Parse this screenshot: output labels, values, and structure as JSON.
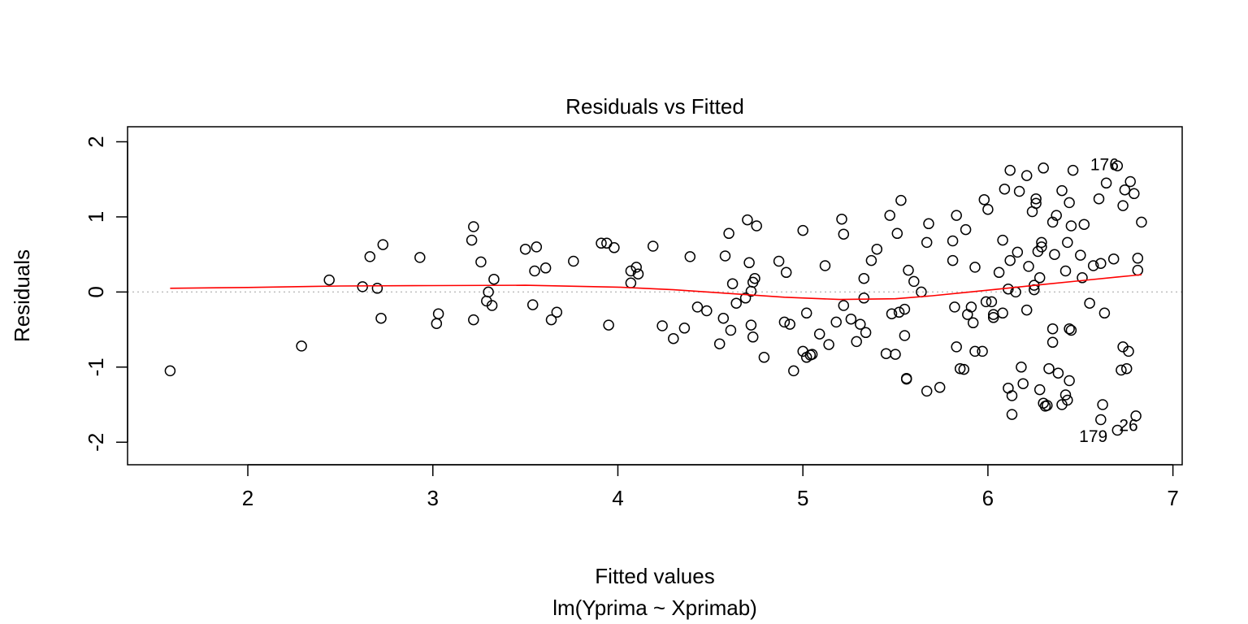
{
  "chart_data": {
    "type": "scatter",
    "title": "Residuals vs Fitted",
    "xlabel": "Fitted values",
    "subtitle": "lm(Yprima ~ Xprimab)",
    "ylabel": "Residuals",
    "xlim": [
      1.35,
      7.05
    ],
    "ylim": [
      -2.3,
      2.2
    ],
    "xticks": [
      2,
      3,
      4,
      5,
      6,
      7
    ],
    "yticks": [
      -2,
      -1,
      0,
      1,
      2
    ],
    "xtick_labels": [
      "2",
      "3",
      "4",
      "5",
      "6",
      "7"
    ],
    "ytick_labels": [
      "-2",
      "-1",
      "0",
      "1",
      "2"
    ],
    "grid": false,
    "legend": "none",
    "colors": {
      "points": "#000000",
      "smoother": "#ff0000",
      "reference_line": "#bebebe",
      "frame": "#000000"
    },
    "reference_line_y": 0,
    "points": [
      [
        1.58,
        -1.05
      ],
      [
        2.29,
        -0.72
      ],
      [
        2.44,
        0.16
      ],
      [
        2.62,
        0.07
      ],
      [
        2.66,
        0.47
      ],
      [
        2.7,
        0.05
      ],
      [
        2.72,
        -0.35
      ],
      [
        2.73,
        0.63
      ],
      [
        2.93,
        0.46
      ],
      [
        3.02,
        -0.42
      ],
      [
        3.03,
        -0.29
      ],
      [
        3.21,
        0.69
      ],
      [
        3.22,
        0.87
      ],
      [
        3.22,
        -0.37
      ],
      [
        3.26,
        0.4
      ],
      [
        3.29,
        -0.12
      ],
      [
        3.3,
        0.0
      ],
      [
        3.32,
        -0.18
      ],
      [
        3.33,
        0.17
      ],
      [
        3.5,
        0.57
      ],
      [
        3.54,
        -0.17
      ],
      [
        3.55,
        0.28
      ],
      [
        3.56,
        0.6
      ],
      [
        3.61,
        0.32
      ],
      [
        3.64,
        -0.37
      ],
      [
        3.67,
        -0.27
      ],
      [
        3.76,
        0.41
      ],
      [
        3.91,
        0.65
      ],
      [
        3.94,
        0.65
      ],
      [
        3.95,
        -0.44
      ],
      [
        3.98,
        0.59
      ],
      [
        4.07,
        0.28
      ],
      [
        4.07,
        0.12
      ],
      [
        4.1,
        0.33
      ],
      [
        4.11,
        0.24
      ],
      [
        4.19,
        0.61
      ],
      [
        4.24,
        -0.45
      ],
      [
        4.3,
        -0.62
      ],
      [
        4.36,
        -0.48
      ],
      [
        4.39,
        0.47
      ],
      [
        4.43,
        -0.2
      ],
      [
        4.48,
        -0.25
      ],
      [
        4.55,
        -0.69
      ],
      [
        4.57,
        -0.35
      ],
      [
        4.58,
        0.48
      ],
      [
        4.6,
        0.78
      ],
      [
        4.61,
        -0.51
      ],
      [
        4.62,
        0.11
      ],
      [
        4.64,
        -0.15
      ],
      [
        4.69,
        -0.08
      ],
      [
        4.7,
        0.96
      ],
      [
        4.71,
        0.39
      ],
      [
        4.72,
        -0.44
      ],
      [
        4.72,
        0.01
      ],
      [
        4.73,
        0.13
      ],
      [
        4.73,
        -0.6
      ],
      [
        4.74,
        0.18
      ],
      [
        4.75,
        0.88
      ],
      [
        4.79,
        -0.87
      ],
      [
        4.87,
        0.41
      ],
      [
        4.9,
        -0.4
      ],
      [
        4.91,
        0.26
      ],
      [
        4.93,
        -0.43
      ],
      [
        4.95,
        -1.05
      ],
      [
        5.0,
        0.82
      ],
      [
        5.0,
        -0.79
      ],
      [
        5.02,
        -0.87
      ],
      [
        5.02,
        -0.28
      ],
      [
        5.04,
        -0.84
      ],
      [
        5.05,
        -0.83
      ],
      [
        5.09,
        -0.56
      ],
      [
        5.12,
        0.35
      ],
      [
        5.14,
        -0.7
      ],
      [
        5.18,
        -0.4
      ],
      [
        5.21,
        0.97
      ],
      [
        5.22,
        0.77
      ],
      [
        5.22,
        -0.18
      ],
      [
        5.26,
        -0.36
      ],
      [
        5.29,
        -0.66
      ],
      [
        5.31,
        -0.43
      ],
      [
        5.33,
        -0.08
      ],
      [
        5.33,
        0.18
      ],
      [
        5.34,
        -0.54
      ],
      [
        5.37,
        0.42
      ],
      [
        5.4,
        0.57
      ],
      [
        5.45,
        -0.82
      ],
      [
        5.47,
        1.02
      ],
      [
        5.48,
        -0.29
      ],
      [
        5.5,
        -0.83
      ],
      [
        5.51,
        0.78
      ],
      [
        5.52,
        -0.27
      ],
      [
        5.53,
        1.22
      ],
      [
        5.55,
        -0.23
      ],
      [
        5.55,
        -0.58
      ],
      [
        5.56,
        -1.16
      ],
      [
        5.56,
        -1.15
      ],
      [
        5.57,
        0.29
      ],
      [
        5.6,
        0.14
      ],
      [
        5.64,
        0.0
      ],
      [
        5.67,
        0.66
      ],
      [
        5.67,
        -1.32
      ],
      [
        5.68,
        0.91
      ],
      [
        5.74,
        -1.27
      ],
      [
        5.81,
        0.68
      ],
      [
        5.81,
        0.42
      ],
      [
        5.82,
        -0.2
      ],
      [
        5.83,
        -0.73
      ],
      [
        5.83,
        1.02
      ],
      [
        5.85,
        -1.02
      ],
      [
        5.87,
        -1.03
      ],
      [
        5.88,
        0.83
      ],
      [
        5.89,
        -0.3
      ],
      [
        5.91,
        -0.2
      ],
      [
        5.92,
        -0.41
      ],
      [
        5.93,
        0.33
      ],
      [
        5.93,
        -0.79
      ],
      [
        5.97,
        -0.79
      ],
      [
        5.98,
        1.23
      ],
      [
        5.99,
        -0.13
      ],
      [
        6.0,
        1.1
      ],
      [
        6.02,
        -0.13
      ],
      [
        6.03,
        -0.34
      ],
      [
        6.03,
        -0.3
      ],
      [
        6.06,
        0.26
      ],
      [
        6.08,
        -0.28
      ],
      [
        6.08,
        0.69
      ],
      [
        6.09,
        1.37
      ],
      [
        6.11,
        0.04
      ],
      [
        6.11,
        -1.28
      ],
      [
        6.12,
        1.62
      ],
      [
        6.12,
        0.42
      ],
      [
        6.13,
        -1.38
      ],
      [
        6.13,
        -1.63
      ],
      [
        6.15,
        0.0
      ],
      [
        6.16,
        0.53
      ],
      [
        6.17,
        1.34
      ],
      [
        6.18,
        -1.0
      ],
      [
        6.19,
        -1.22
      ],
      [
        6.21,
        1.55
      ],
      [
        6.21,
        -0.24
      ],
      [
        6.22,
        0.34
      ],
      [
        6.24,
        1.07
      ],
      [
        6.25,
        0.03
      ],
      [
        6.25,
        0.09
      ],
      [
        6.26,
        1.24
      ],
      [
        6.26,
        1.18
      ],
      [
        6.27,
        0.54
      ],
      [
        6.28,
        0.19
      ],
      [
        6.28,
        -1.3
      ],
      [
        6.29,
        0.6
      ],
      [
        6.29,
        0.66
      ],
      [
        6.3,
        1.65
      ],
      [
        6.3,
        -1.48
      ],
      [
        6.31,
        -1.52
      ],
      [
        6.32,
        -1.51
      ],
      [
        6.33,
        -1.02
      ],
      [
        6.35,
        0.93
      ],
      [
        6.35,
        -0.49
      ],
      [
        6.35,
        -0.67
      ],
      [
        6.36,
        0.5
      ],
      [
        6.37,
        1.02
      ],
      [
        6.38,
        -1.08
      ],
      [
        6.4,
        1.35
      ],
      [
        6.4,
        -1.5
      ],
      [
        6.42,
        0.28
      ],
      [
        6.42,
        -1.37
      ],
      [
        6.43,
        -1.44
      ],
      [
        6.43,
        0.66
      ],
      [
        6.44,
        1.19
      ],
      [
        6.44,
        -0.49
      ],
      [
        6.44,
        -1.18
      ],
      [
        6.45,
        -0.51
      ],
      [
        6.45,
        0.88
      ],
      [
        6.46,
        1.62
      ],
      [
        6.5,
        0.49
      ],
      [
        6.51,
        0.19
      ],
      [
        6.52,
        0.9
      ],
      [
        6.55,
        -0.15
      ],
      [
        6.57,
        0.35
      ],
      [
        6.6,
        1.24
      ],
      [
        6.61,
        0.38
      ],
      [
        6.61,
        -1.7
      ],
      [
        6.62,
        -1.5
      ],
      [
        6.63,
        -0.28
      ],
      [
        6.64,
        1.45
      ],
      [
        6.68,
        0.44
      ],
      [
        6.7,
        1.68
      ],
      [
        6.7,
        -1.84
      ],
      [
        6.72,
        -1.04
      ],
      [
        6.73,
        -0.73
      ],
      [
        6.73,
        1.15
      ],
      [
        6.74,
        1.36
      ],
      [
        6.75,
        -1.02
      ],
      [
        6.76,
        -0.79
      ],
      [
        6.77,
        1.47
      ],
      [
        6.79,
        1.31
      ],
      [
        6.8,
        -1.65
      ],
      [
        6.81,
        0.45
      ],
      [
        6.81,
        0.29
      ],
      [
        6.83,
        0.93
      ]
    ],
    "point_labels": [
      {
        "text": "176",
        "x": 6.63,
        "y": 1.68
      },
      {
        "text": "26",
        "x": 6.76,
        "y": -1.79
      },
      {
        "text": "179",
        "x": 6.57,
        "y": -1.94
      }
    ],
    "smoother": [
      [
        1.58,
        0.05
      ],
      [
        2.0,
        0.06
      ],
      [
        2.5,
        0.08
      ],
      [
        3.0,
        0.085
      ],
      [
        3.5,
        0.09
      ],
      [
        4.0,
        0.065
      ],
      [
        4.3,
        0.03
      ],
      [
        4.6,
        -0.02
      ],
      [
        4.9,
        -0.07
      ],
      [
        5.2,
        -0.1
      ],
      [
        5.5,
        -0.09
      ],
      [
        5.7,
        -0.05
      ],
      [
        5.9,
        0.0
      ],
      [
        6.1,
        0.05
      ],
      [
        6.3,
        0.1
      ],
      [
        6.5,
        0.15
      ],
      [
        6.7,
        0.2
      ],
      [
        6.83,
        0.23
      ]
    ]
  }
}
